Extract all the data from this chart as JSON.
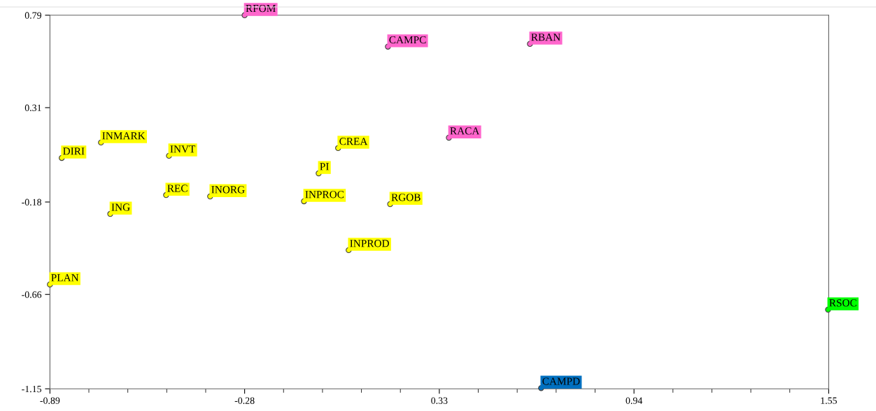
{
  "chart_data": {
    "type": "scatter",
    "marker": "circle",
    "grid": false,
    "data_labels": false,
    "xlim": [
      -0.89,
      1.55
    ],
    "xticks": [
      -0.89,
      -0.28,
      0.33,
      0.94,
      1.55
    ],
    "ylim": [
      -1.15,
      0.79
    ],
    "yticks": [
      -1.15,
      -0.66,
      -0.18,
      0.31,
      0.79
    ],
    "series": [
      {
        "color": "#ffff00",
        "x": [
          -0.853,
          -0.73,
          -0.517,
          0.013,
          -0.048,
          -0.526,
          -0.388,
          -0.094,
          0.176,
          -0.701,
          0.046,
          -0.89
        ],
        "values": [
          0.049,
          0.129,
          0.06,
          0.1,
          -0.031,
          -0.144,
          -0.151,
          -0.176,
          -0.191,
          -0.242,
          -0.43,
          -0.608
        ],
        "value_labels": [
          "DIRI",
          "INMARK",
          "INVT",
          "CREA",
          "PI",
          "REC",
          "INORG",
          "INPROC",
          "RGOB",
          "ING",
          "INPROD",
          "PLAN"
        ]
      },
      {
        "color": "#ff66cc",
        "x": [
          -0.28,
          0.169,
          0.614,
          0.36
        ],
        "values": [
          0.79,
          0.627,
          0.641,
          0.154
        ],
        "value_labels": [
          "RFOM",
          "CAMPC",
          "RBAN",
          "RACA"
        ]
      },
      {
        "color": "#00ff00",
        "x": [
          1.548
        ],
        "values": [
          -0.739
        ],
        "value_labels": [
          "RSOC"
        ]
      },
      {
        "color": "#0070c0",
        "x": [
          0.649
        ],
        "values": [
          -1.146
        ],
        "value_labels": [
          "CAMPD"
        ]
      }
    ]
  }
}
